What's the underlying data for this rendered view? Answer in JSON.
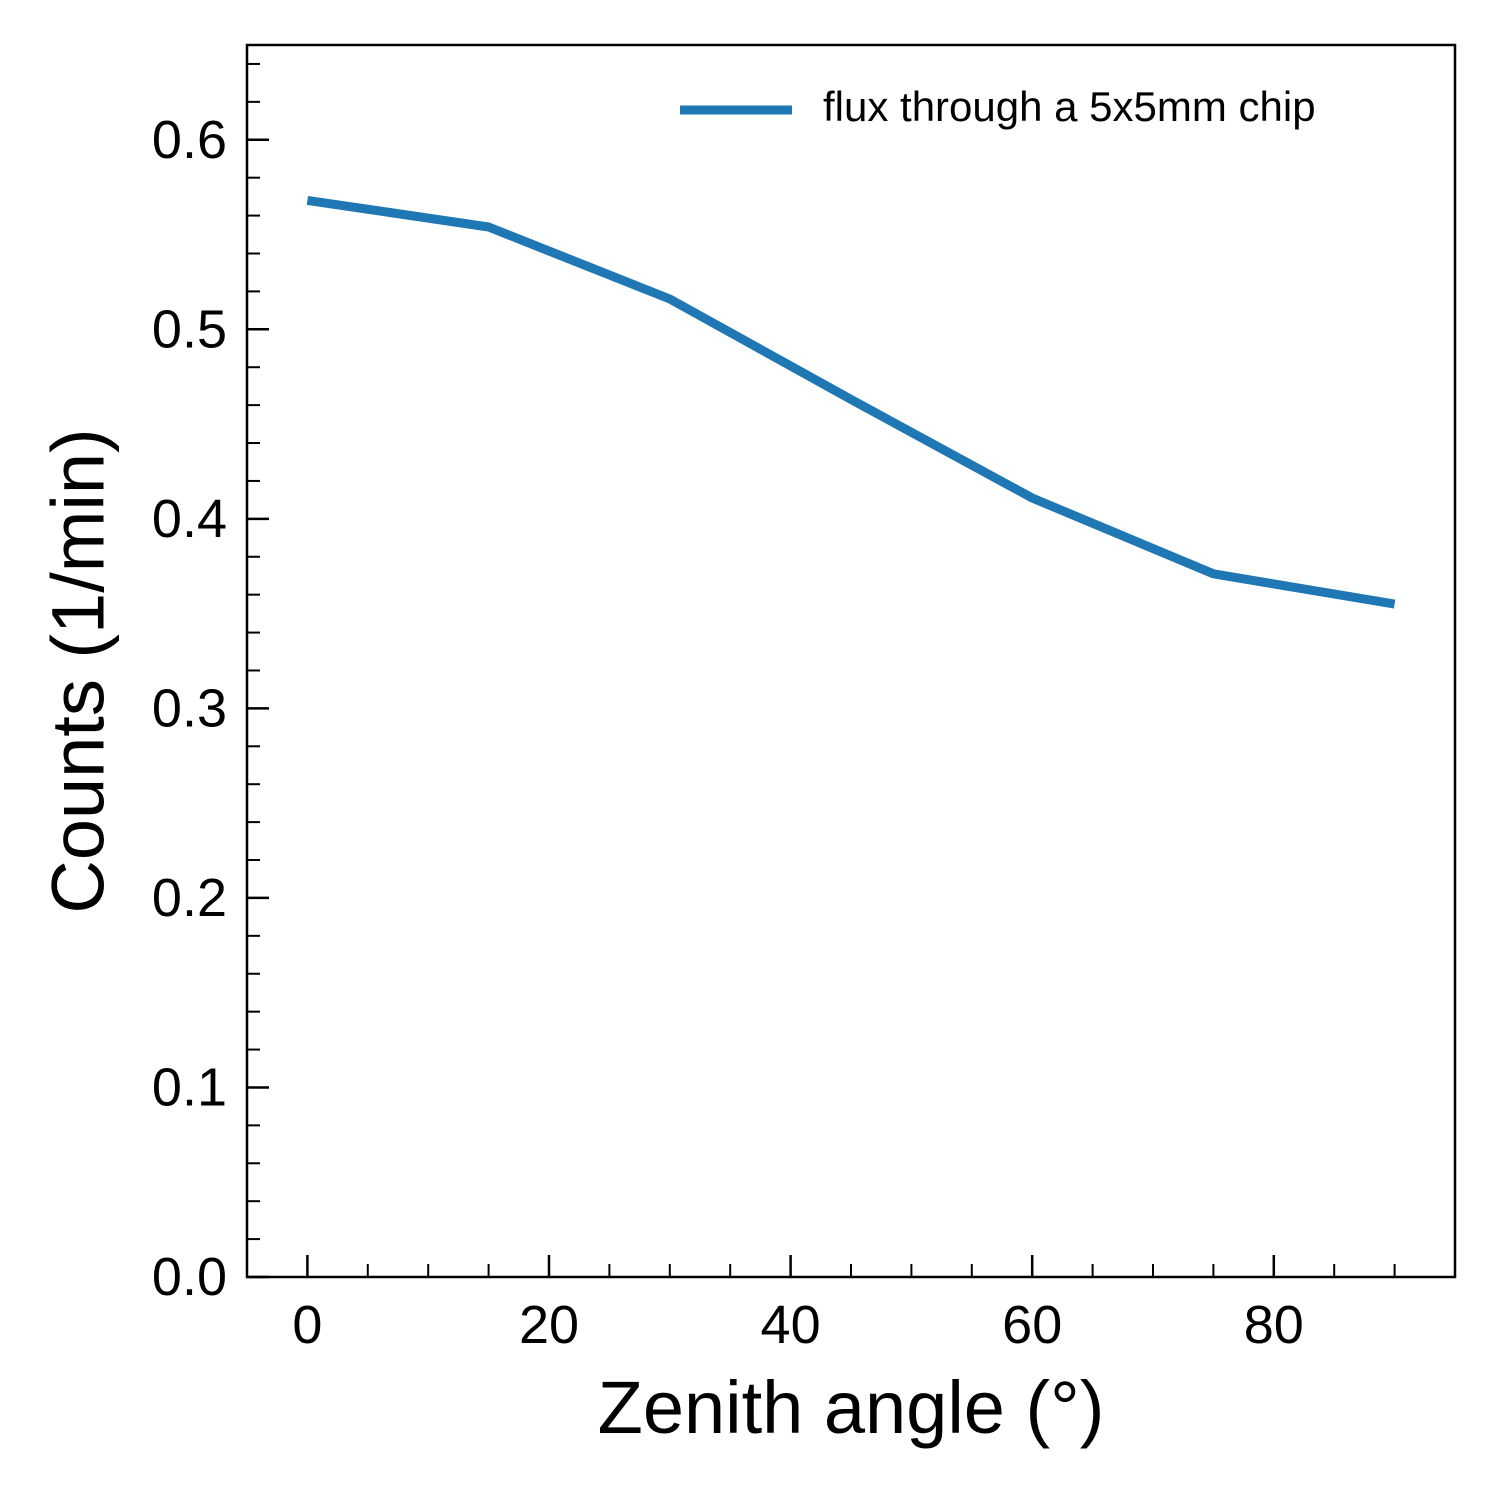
{
  "chart_data": {
    "type": "line",
    "xlabel": "Zenith angle (°)",
    "ylabel": "Counts (1/min)",
    "xlim": [
      -5,
      95
    ],
    "ylim": [
      0.0,
      0.65
    ],
    "x_ticks": [
      0,
      20,
      40,
      60,
      80
    ],
    "x_tick_labels": [
      "0",
      "20",
      "40",
      "60",
      "80"
    ],
    "x_minor_step": 5,
    "y_ticks": [
      0.0,
      0.1,
      0.2,
      0.3,
      0.4,
      0.5,
      0.6
    ],
    "y_tick_labels": [
      "0.0",
      "0.1",
      "0.2",
      "0.3",
      "0.4",
      "0.5",
      "0.6"
    ],
    "y_minor_step": 0.02,
    "grid": false,
    "legend_position": "top-right",
    "series": [
      {
        "name": "flux through a 5x5mm chip",
        "color": "#1f77b4",
        "x": [
          0,
          15,
          30,
          45,
          60,
          75,
          90
        ],
        "y": [
          0.568,
          0.554,
          0.516,
          0.463,
          0.411,
          0.371,
          0.355
        ]
      }
    ]
  }
}
